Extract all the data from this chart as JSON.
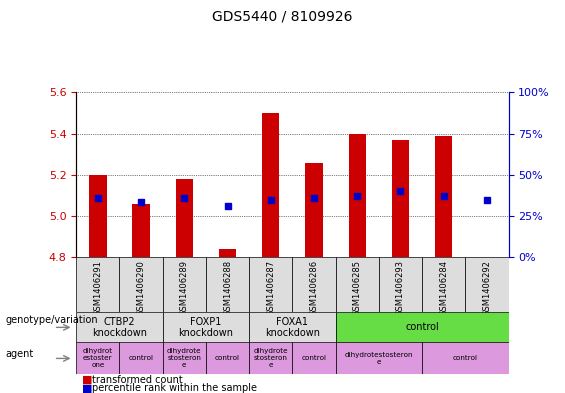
{
  "title": "GDS5440 / 8109926",
  "samples": [
    "GSM1406291",
    "GSM1406290",
    "GSM1406289",
    "GSM1406288",
    "GSM1406287",
    "GSM1406286",
    "GSM1406285",
    "GSM1406293",
    "GSM1406284",
    "GSM1406292"
  ],
  "transformed_count": [
    5.2,
    5.06,
    5.18,
    4.84,
    5.5,
    5.26,
    5.4,
    5.37,
    5.39,
    4.8
  ],
  "percentile_rank": [
    5.09,
    5.07,
    5.09,
    5.05,
    5.08,
    5.09,
    5.1,
    5.12,
    5.1,
    5.08
  ],
  "ylim_left": [
    4.8,
    5.6
  ],
  "ylim_right": [
    0,
    100
  ],
  "yticks_left": [
    4.8,
    5.0,
    5.2,
    5.4,
    5.6
  ],
  "yticks_right": [
    0,
    25,
    50,
    75,
    100
  ],
  "bar_color": "#cc0000",
  "dot_color": "#0000cc",
  "bar_width": 0.4,
  "genotype_groups": [
    {
      "label": "CTBP2\nknockdown",
      "start": 0,
      "end": 2,
      "color": "#dddddd"
    },
    {
      "label": "FOXP1\nknockdown",
      "start": 2,
      "end": 4,
      "color": "#dddddd"
    },
    {
      "label": "FOXA1\nknockdown",
      "start": 4,
      "end": 6,
      "color": "#dddddd"
    },
    {
      "label": "control",
      "start": 6,
      "end": 10,
      "color": "#66dd44"
    }
  ],
  "agent_groups": [
    {
      "label": "dihydrot\nestoster\none",
      "start": 0,
      "end": 1,
      "color": "#dd99dd"
    },
    {
      "label": "control",
      "start": 1,
      "end": 2,
      "color": "#dd99dd"
    },
    {
      "label": "dihydrote\nstosteron\ne",
      "start": 2,
      "end": 3,
      "color": "#dd99dd"
    },
    {
      "label": "control",
      "start": 3,
      "end": 4,
      "color": "#dd99dd"
    },
    {
      "label": "dihydrote\nstosteron\ne",
      "start": 4,
      "end": 5,
      "color": "#dd99dd"
    },
    {
      "label": "control",
      "start": 5,
      "end": 6,
      "color": "#dd99dd"
    },
    {
      "label": "dihydrotestosteron\ne",
      "start": 6,
      "end": 8,
      "color": "#dd99dd"
    },
    {
      "label": "control",
      "start": 8,
      "end": 10,
      "color": "#dd99dd"
    }
  ],
  "legend_labels": [
    "transformed count",
    "percentile rank within the sample"
  ],
  "legend_colors": [
    "#cc0000",
    "#0000cc"
  ],
  "left_axis_color": "#cc0000",
  "right_axis_color": "#0000cc",
  "label_geno": "genotype/variation",
  "label_agent": "agent"
}
